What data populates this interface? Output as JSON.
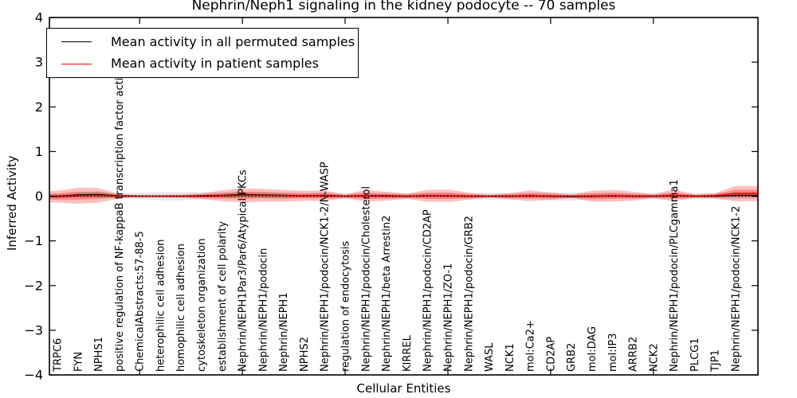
{
  "title": "Nephrin/Neph1 signaling in the kidney podocyte -- 70 samples",
  "legend": {
    "items": [
      {
        "label": "Mean activity in all permuted samples",
        "color": "#000000"
      },
      {
        "label": "Mean activity in patient samples",
        "color": "#ff0000"
      }
    ]
  },
  "axes": {
    "ylabel": "Inferred Activity",
    "xlabel": "Cellular Entities",
    "ytick_labels": [
      "4",
      "3",
      "2",
      "1",
      "0",
      "−1",
      "−2",
      "−3",
      "−4"
    ]
  },
  "colors": {
    "permuted_line": "#000000",
    "patient_line": "#ff0000",
    "permuted_band": "#bbbbbb",
    "patient_band": "#ff0000",
    "frame": "#000000",
    "background": "#ffffff"
  },
  "chart_data": {
    "type": "line",
    "title": "Nephrin/Neph1 signaling in the kidney podocyte -- 70 samples",
    "xlabel": "Cellular Entities",
    "ylabel": "Inferred Activity",
    "ylim": [
      -4,
      4
    ],
    "yticks": [
      4,
      3,
      2,
      1,
      0,
      -1,
      -2,
      -3,
      -4
    ],
    "x_major_tick_indices": [
      4,
      9,
      14,
      19,
      24,
      29
    ],
    "grid": false,
    "legend_position": "upper left",
    "zero_reference_line": 0,
    "categories": [
      "TRPC6",
      "FYN",
      "NPHS1",
      "positive regulation of NF-kappaB transcription factor activity",
      "ChemicalAbstracts:57-88-5",
      "heterophilic cell adhesion",
      "homophilic cell adhesion",
      "cytoskeleton organization",
      "establishment of cell polarity",
      "Nephrin/NEPH1Par3/Par6/Atypical PKCs",
      "Nephrin/NEPH1/podocin",
      "Nephrin/NEPH1",
      "NPHS2",
      "Nephrin/NEPH1/podocin/NCK1-2/N-WASP",
      "regulation of endocytosis",
      "Nephrin/NEPH1/podocin/Cholesterol",
      "Nephrin/NEPH1/beta Arrestin2",
      "KIRREL",
      "Nephrin/NEPH1/podocin/CD2AP",
      "Nephrin/NEPH1/ZO-1",
      "Nephrin/NEPH1/podocin/GRB2",
      "WASL",
      "NCK1",
      "mol:Ca2+",
      "CD2AP",
      "GRB2",
      "mol:DAG",
      "mol:IP3",
      "ARRB2",
      "NCK2",
      "Nephrin/NEPH1/podocin/PLCgamma1",
      "PLCG1",
      "TJP1",
      "Nephrin/NEPH1/podocin/NCK1-2"
    ],
    "series": [
      {
        "name": "Mean activity in all permuted samples",
        "color": "#000000",
        "values": [
          0.0,
          0.03,
          0.04,
          0.01,
          0.0,
          0.0,
          0.0,
          0.01,
          0.02,
          0.04,
          0.03,
          0.02,
          0.01,
          0.02,
          0.0,
          0.01,
          0.01,
          0.0,
          0.01,
          0.01,
          0.0,
          0.0,
          0.0,
          0.01,
          0.0,
          -0.01,
          0.0,
          0.01,
          0.0,
          0.0,
          0.01,
          0.0,
          0.0,
          0.02
        ],
        "std": [
          0.06,
          0.07,
          0.07,
          0.06,
          0.07,
          0.09,
          0.09,
          0.08,
          0.07,
          0.07,
          0.07,
          0.06,
          0.06,
          0.07,
          0.07,
          0.07,
          0.07,
          0.06,
          0.07,
          0.07,
          0.06,
          0.08,
          0.07,
          0.07,
          0.09,
          0.09,
          0.07,
          0.07,
          0.06,
          0.06,
          0.07,
          0.06,
          0.07,
          0.08
        ]
      },
      {
        "name": "Mean activity in patient samples",
        "color": "#ff0000",
        "values": [
          -0.01,
          0.01,
          0.02,
          0.0,
          0.0,
          0.0,
          0.0,
          0.0,
          0.01,
          0.02,
          0.02,
          0.01,
          0.01,
          0.01,
          0.0,
          0.01,
          0.0,
          0.0,
          0.01,
          0.01,
          0.0,
          0.0,
          0.0,
          0.01,
          0.0,
          0.0,
          0.0,
          0.01,
          0.0,
          0.0,
          0.02,
          0.0,
          0.01,
          0.06
        ],
        "std": [
          0.13,
          0.18,
          0.16,
          0.05,
          0.02,
          0.02,
          0.03,
          0.06,
          0.12,
          0.16,
          0.14,
          0.13,
          0.11,
          0.12,
          0.04,
          0.13,
          0.1,
          0.06,
          0.13,
          0.14,
          0.08,
          0.03,
          0.07,
          0.12,
          0.08,
          0.04,
          0.12,
          0.13,
          0.1,
          0.05,
          0.13,
          0.04,
          0.06,
          0.17
        ]
      }
    ]
  }
}
